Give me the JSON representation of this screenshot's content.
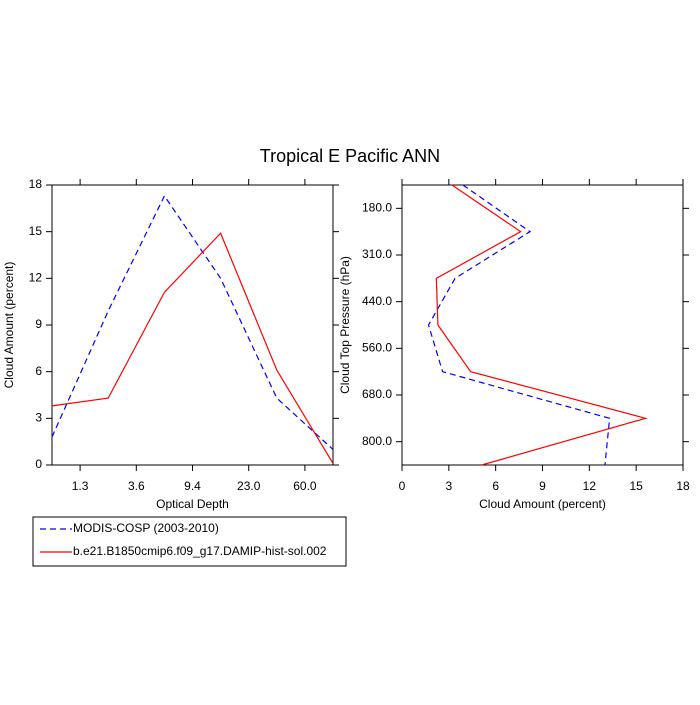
{
  "chart_data": [
    {
      "type": "line",
      "title": "Tropical E Pacific ANN",
      "xlabel": "Optical Depth",
      "ylabel": "Cloud Amount (percent)",
      "x": [
        0,
        1,
        2,
        3,
        4,
        5
      ],
      "xlim": [
        0,
        5
      ],
      "xticks": [
        {
          "value": 0.5,
          "label": "1.3"
        },
        {
          "value": 1.5,
          "label": "3.6"
        },
        {
          "value": 2.5,
          "label": "9.4"
        },
        {
          "value": 3.5,
          "label": "23.0"
        },
        {
          "value": 4.5,
          "label": "60.0"
        }
      ],
      "ylim": [
        0,
        18
      ],
      "yticks": [
        0,
        3,
        6,
        9,
        12,
        15,
        18
      ],
      "series": [
        {
          "name": "MODIS-COSP (2003-2010)",
          "color": "#0000ff",
          "dash": true,
          "values": [
            1.8,
            9.9,
            17.3,
            12.0,
            4.3,
            1.0
          ]
        },
        {
          "name": "b.e21.B1850cmip6.f09_g17.DAMIP-hist-sol.002",
          "color": "#ff0000",
          "dash": false,
          "values": [
            3.8,
            4.3,
            11.1,
            14.9,
            6.1,
            0.1
          ]
        }
      ]
    },
    {
      "type": "line",
      "orientation": "horizontal",
      "xlabel": "Cloud Amount (percent)",
      "ylabel": "Cloud Top Pressure (hPa)",
      "y": [
        0,
        1,
        2,
        3,
        4,
        5,
        6
      ],
      "ylim": [
        6,
        0
      ],
      "yticks": [
        {
          "value": 0.5,
          "label": "180.0"
        },
        {
          "value": 1.5,
          "label": "310.0"
        },
        {
          "value": 2.5,
          "label": "440.0"
        },
        {
          "value": 3.5,
          "label": "560.0"
        },
        {
          "value": 4.5,
          "label": "680.0"
        },
        {
          "value": 5.5,
          "label": "800.0"
        }
      ],
      "xlim": [
        0,
        18
      ],
      "xticks": [
        0,
        3,
        6,
        9,
        12,
        15,
        18
      ],
      "series": [
        {
          "name": "MODIS-COSP (2003-2010)",
          "color": "#0000ff",
          "dash": true,
          "values": [
            3.9,
            8.2,
            3.4,
            1.7,
            2.6,
            13.3,
            13.0
          ]
        },
        {
          "name": "b.e21.B1850cmip6.f09_g17.DAMIP-hist-sol.002",
          "color": "#ff0000",
          "dash": false,
          "values": [
            3.2,
            7.6,
            2.2,
            2.3,
            4.4,
            15.6,
            5.1
          ]
        }
      ]
    }
  ]
}
